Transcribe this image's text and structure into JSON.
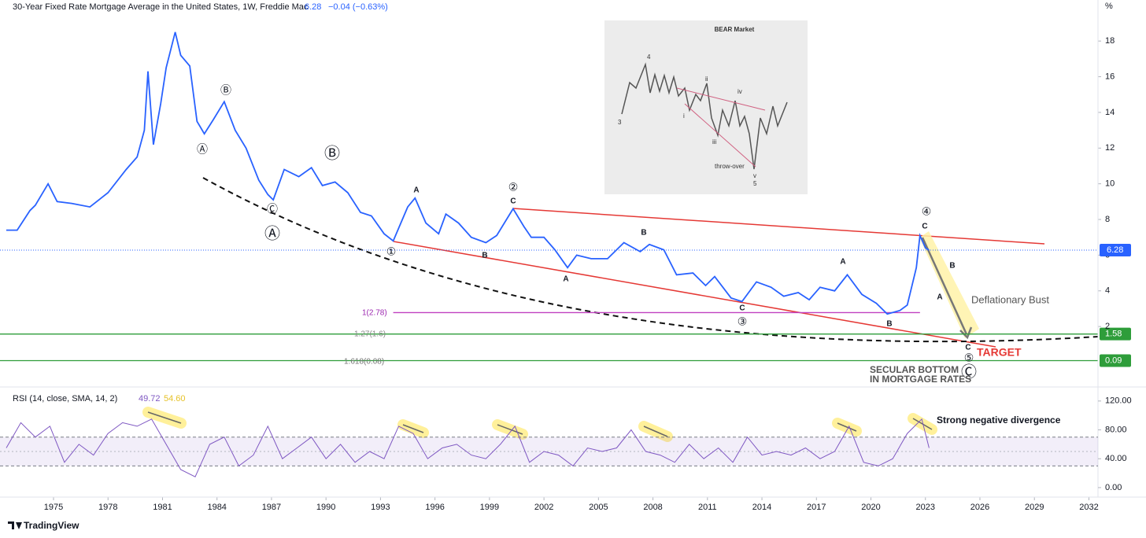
{
  "header": {
    "title": "30-Year Fixed Rate Mortgage Average in the United States, 1W, Freddie Mac",
    "change": "−0.04 (−0.63%)",
    "unit": "%"
  },
  "chart_data": [
    {
      "type": "line",
      "color": "#2962ff",
      "x": [
        1972.4,
        1973.0,
        1973.7,
        1974.0,
        1974.7,
        1975.2,
        1976.0,
        1977.0,
        1978.0,
        1979.0,
        1979.6,
        1980.0,
        1980.2,
        1980.5,
        1980.9,
        1981.2,
        1981.7,
        1982.0,
        1982.5,
        1982.9,
        1983.3,
        1983.8,
        1984.4,
        1985.0,
        1985.6,
        1986.3,
        1986.8,
        1987.1,
        1987.7,
        1988.5,
        1989.2,
        1989.8,
        1990.5,
        1991.2,
        1991.9,
        1992.5,
        1993.2,
        1993.7,
        1994.5,
        1994.9,
        1995.5,
        1996.2,
        1996.6,
        1997.3,
        1998.0,
        1998.8,
        1999.4,
        2000.3,
        2000.9,
        2001.3,
        2002.0,
        2002.6,
        2003.3,
        2003.8,
        2004.6,
        2005.5,
        2006.4,
        2007.3,
        2007.8,
        2008.6,
        2009.3,
        2010.2,
        2010.9,
        2011.4,
        2012.3,
        2012.9,
        2013.7,
        2014.5,
        2015.2,
        2016.0,
        2016.6,
        2017.2,
        2018.0,
        2018.7,
        2019.5,
        2020.3,
        2020.9,
        2021.6,
        2022.0,
        2022.5,
        2022.7,
        2023.0,
        2023.2
      ],
      "values": [
        7.4,
        7.4,
        8.5,
        8.8,
        10.0,
        9.0,
        8.9,
        8.7,
        9.5,
        10.8,
        11.5,
        13.0,
        16.3,
        12.2,
        14.5,
        16.5,
        18.5,
        17.2,
        16.6,
        13.5,
        12.8,
        13.6,
        14.6,
        13.0,
        12.0,
        10.2,
        9.4,
        9.1,
        10.8,
        10.4,
        10.9,
        9.9,
        10.1,
        9.5,
        8.4,
        8.2,
        7.2,
        6.8,
        8.7,
        9.2,
        7.8,
        7.2,
        8.3,
        7.8,
        7.0,
        6.7,
        7.1,
        8.6,
        7.6,
        7.0,
        7.0,
        6.3,
        5.3,
        6.0,
        5.8,
        5.8,
        6.7,
        6.2,
        6.6,
        6.3,
        4.9,
        5.0,
        4.3,
        4.8,
        3.6,
        3.4,
        4.5,
        4.2,
        3.7,
        3.9,
        3.5,
        4.2,
        4.0,
        4.9,
        3.8,
        3.3,
        2.7,
        2.9,
        3.2,
        5.3,
        7.1,
        6.4,
        6.28
      ],
      "last_value": 6.28,
      "xlim": [
        1972.4,
        2032.5
      ],
      "ylim": [
        -1.3,
        20.3
      ],
      "yticks": [
        2,
        4,
        6,
        8,
        10,
        12,
        14,
        16,
        18
      ],
      "xticks": [
        1975,
        1978,
        1981,
        1984,
        1987,
        1990,
        1993,
        1996,
        1999,
        2002,
        2005,
        2008,
        2011,
        2014,
        2017,
        2020,
        2023,
        2026,
        2029,
        2032
      ],
      "levels": [
        {
          "value": 2.78,
          "color": "#c040c0",
          "from": 1993.7,
          "to": 2022.7
        },
        {
          "value": 1.58,
          "label": "1.58",
          "color": "#2e9d3a"
        },
        {
          "value": 0.09,
          "label": "0.09",
          "color": "#2e9d3a"
        }
      ],
      "annotations": {
        "fib": [
          "1(2.78)",
          "1.27(1.6)",
          "1.618(0.08)"
        ],
        "waves": [
          "Ⓐ",
          "Ⓑ",
          "Ⓒ",
          "Ⓐ",
          "Ⓑ",
          "①",
          "A",
          "B",
          "②",
          "C",
          "A",
          "B",
          "C",
          "③",
          "A",
          "B",
          "④",
          "C",
          "B",
          "A",
          "C",
          "⑤",
          "Ⓒ"
        ],
        "notes": [
          "Deflationary Bust",
          "TARGET",
          "SECULAR BOTTOM",
          "IN MORTGAGE RATES"
        ],
        "inset": [
          "BEAR Market",
          "4",
          "3",
          "ii",
          "iv",
          "i",
          "iii",
          "throw-over",
          "v",
          "5"
        ]
      }
    },
    {
      "type": "line",
      "color": "#7e57c2",
      "title": "RSI (14, close, SMA, 14, 2)",
      "legend_values": [
        49.72,
        {
          "value": 54.6,
          "label": "54.60"
        }
      ],
      "x": [
        1972.4,
        1973.2,
        1974,
        1974.8,
        1975.6,
        1976.4,
        1977.2,
        1978,
        1978.8,
        1979.6,
        1980.4,
        1981.2,
        1982,
        1982.8,
        1983.6,
        1984.4,
        1985.2,
        1986,
        1986.8,
        1987.6,
        1988.4,
        1989.2,
        1990,
        1990.8,
        1991.6,
        1992.4,
        1993.2,
        1994,
        1994.8,
        1995.6,
        1996.4,
        1997.2,
        1998,
        1998.8,
        1999.6,
        2000.4,
        2001.2,
        2002,
        2002.8,
        2003.6,
        2004.4,
        2005.2,
        2006,
        2006.8,
        2007.6,
        2008.4,
        2009.2,
        2010,
        2010.8,
        2011.6,
        2012.4,
        2013.2,
        2014,
        2014.8,
        2015.6,
        2016.4,
        2017.2,
        2018,
        2018.8,
        2019.6,
        2020.4,
        2021.2,
        2022,
        2022.8,
        2023.2
      ],
      "values": [
        55,
        90,
        70,
        85,
        35,
        60,
        45,
        75,
        90,
        85,
        95,
        60,
        25,
        15,
        60,
        70,
        30,
        45,
        85,
        40,
        55,
        70,
        40,
        60,
        35,
        50,
        40,
        85,
        75,
        40,
        55,
        60,
        45,
        40,
        60,
        85,
        35,
        50,
        45,
        30,
        55,
        50,
        55,
        80,
        50,
        45,
        35,
        60,
        40,
        55,
        35,
        70,
        45,
        50,
        45,
        55,
        40,
        50,
        85,
        35,
        30,
        40,
        75,
        95,
        55
      ],
      "ylim": [
        -11,
        134
      ],
      "yticks": [
        {
          "value": 0,
          "label": "0.00"
        },
        {
          "value": 40,
          "label": "40.00"
        },
        {
          "value": 80,
          "label": "80.00"
        },
        {
          "value": 120,
          "label": "120.00"
        }
      ],
      "band": [
        30,
        70
      ],
      "midline": 50,
      "annotation": "Strong negative divergence"
    }
  ],
  "footer": "TradingView"
}
